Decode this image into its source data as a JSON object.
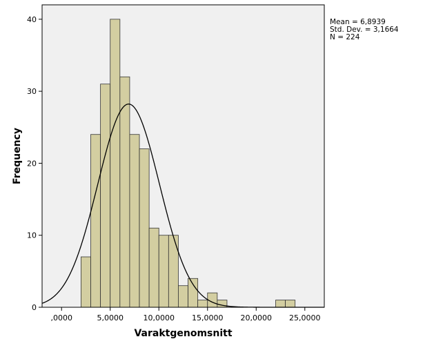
{
  "chart_data": {
    "type": "bar",
    "subtype": "histogram",
    "title": "",
    "xlabel": "Varaktgenomsnitt",
    "ylabel": "Frequency",
    "bin_width": 1000,
    "bins": [
      {
        "start": 2000,
        "end": 3000,
        "count": 7
      },
      {
        "start": 3000,
        "end": 4000,
        "count": 24
      },
      {
        "start": 4000,
        "end": 5000,
        "count": 31
      },
      {
        "start": 5000,
        "end": 6000,
        "count": 40
      },
      {
        "start": 6000,
        "end": 7000,
        "count": 32
      },
      {
        "start": 7000,
        "end": 8000,
        "count": 24
      },
      {
        "start": 8000,
        "end": 9000,
        "count": 22
      },
      {
        "start": 9000,
        "end": 10000,
        "count": 11
      },
      {
        "start": 10000,
        "end": 11000,
        "count": 10
      },
      {
        "start": 11000,
        "end": 12000,
        "count": 10
      },
      {
        "start": 12000,
        "end": 13000,
        "count": 3
      },
      {
        "start": 13000,
        "end": 14000,
        "count": 4
      },
      {
        "start": 14000,
        "end": 15000,
        "count": 1
      },
      {
        "start": 15000,
        "end": 16000,
        "count": 2
      },
      {
        "start": 16000,
        "end": 17000,
        "count": 1
      },
      {
        "start": 22000,
        "end": 23000,
        "count": 1
      },
      {
        "start": 23000,
        "end": 24000,
        "count": 1
      }
    ],
    "normal_curve": {
      "mean": 6893.9,
      "sd": 3166.4,
      "n": 224
    },
    "xlim": [
      -2000,
      27000
    ],
    "ylim": [
      0,
      42
    ],
    "x_ticks": [
      {
        "value": 0,
        "label": ",0000"
      },
      {
        "value": 5000,
        "label": "5,0000"
      },
      {
        "value": 10000,
        "label": "10,0000"
      },
      {
        "value": 15000,
        "label": "15,0000"
      },
      {
        "value": 20000,
        "label": "20,0000"
      },
      {
        "value": 25000,
        "label": "25,0000"
      }
    ],
    "y_ticks": [
      {
        "value": 0,
        "label": "0"
      },
      {
        "value": 10,
        "label": "10"
      },
      {
        "value": 20,
        "label": "20"
      },
      {
        "value": 30,
        "label": "30"
      },
      {
        "value": 40,
        "label": "40"
      }
    ],
    "colors": {
      "bar_fill": "#d3cea1",
      "bar_stroke": "#333333",
      "plot_bg": "#f0f0f0",
      "curve": "#000000"
    },
    "grid": false,
    "legend": "none"
  },
  "stats": {
    "mean": "Mean = 6,8939",
    "sd": "Std. Dev. = 3,1664",
    "n": "N = 224"
  }
}
